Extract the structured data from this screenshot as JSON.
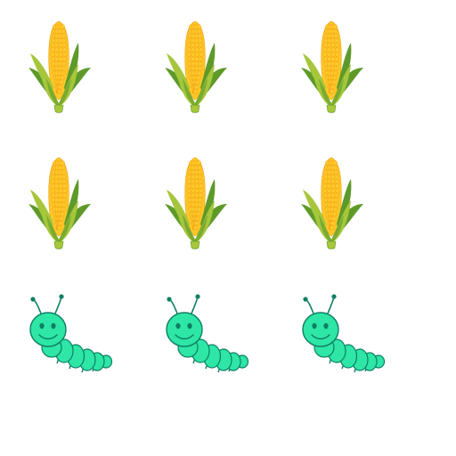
{
  "scene": {
    "background_color": "#ffffff",
    "rows": [
      {
        "icon": "corn-icon",
        "count": 3
      },
      {
        "icon": "corn-icon",
        "count": 3
      },
      {
        "icon": "caterpillar-icon",
        "count": 3
      }
    ]
  },
  "colors": {
    "corn_kernel": "#FFC928",
    "corn_kernel_shade": "#F2A81D",
    "corn_husk_light": "#A6C63B",
    "corn_husk_dark": "#5E9A2A",
    "caterpillar_body": "#2EE6A6",
    "caterpillar_outline": "#0E7F63"
  }
}
